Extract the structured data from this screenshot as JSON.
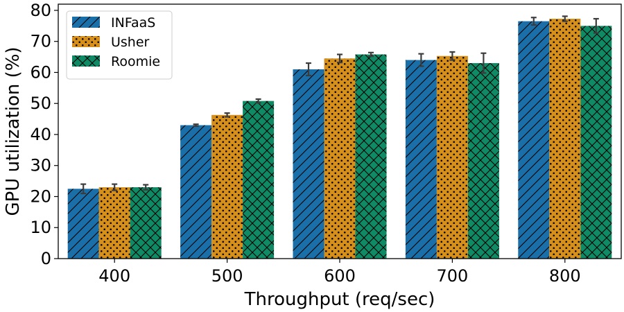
{
  "chart_data": {
    "type": "bar",
    "xlabel": "Throughput (req/sec)",
    "ylabel": "GPU utilization (%)",
    "ylim": [
      0,
      82
    ],
    "yticks": [
      0,
      10,
      20,
      30,
      40,
      50,
      60,
      70,
      80
    ],
    "categories": [
      "400",
      "500",
      "600",
      "700",
      "800"
    ],
    "legend_position": "top-left",
    "grid": false,
    "series": [
      {
        "name": "INFaaS",
        "color": "#1b6fa8",
        "pattern": "diagonal-hatch",
        "values": [
          22.5,
          43.0,
          61.0,
          64.0,
          76.5
        ],
        "errors": [
          1.5,
          0.3,
          2.0,
          2.0,
          1.2
        ]
      },
      {
        "name": "Usher",
        "color": "#d58f1a",
        "pattern": "dots",
        "values": [
          23.0,
          46.3,
          64.5,
          65.3,
          77.3
        ],
        "errors": [
          1.0,
          0.6,
          1.3,
          1.3,
          0.8
        ]
      },
      {
        "name": "Roomie",
        "color": "#0f8a64",
        "pattern": "cross-hatch",
        "values": [
          23.0,
          50.8,
          65.8,
          63.0,
          75.0
        ],
        "errors": [
          0.8,
          0.6,
          0.6,
          3.2,
          2.3
        ]
      }
    ]
  }
}
